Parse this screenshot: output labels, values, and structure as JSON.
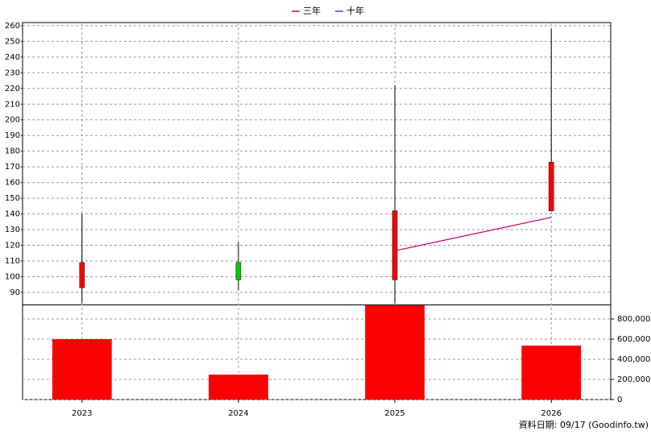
{
  "chart_data": {
    "type": "candlestick",
    "categories": [
      "2023",
      "2024",
      "2025",
      "2026"
    ],
    "open": [
      93,
      109,
      98,
      142
    ],
    "high": [
      140,
      122,
      222,
      258
    ],
    "low": [
      83,
      91.5,
      83,
      142
    ],
    "close": [
      109,
      98,
      142,
      173
    ],
    "up_color": "#ff0000",
    "down_color": "#00cc00",
    "series": [
      {
        "name": "三年",
        "color": "#cc0066",
        "values": [
          null,
          null,
          116.5,
          137.8
        ]
      },
      {
        "name": "十年",
        "color": "#6633cc",
        "values": [
          null,
          null,
          null,
          null
        ]
      }
    ],
    "ylim": [
      82,
      262
    ],
    "yticks": [
      90,
      100,
      110,
      120,
      130,
      140,
      150,
      160,
      170,
      180,
      190,
      200,
      210,
      220,
      230,
      240,
      250,
      260
    ],
    "volume": {
      "color": "#ff0000",
      "values": [
        600000,
        248000,
        936000,
        536000
      ],
      "ylim": [
        0,
        940000
      ],
      "yticks": [
        0,
        {
          "value": 200000,
          "label": "200,000"
        },
        {
          "value": 400000,
          "label": "400,000"
        },
        {
          "value": 600000,
          "label": "600,000"
        },
        {
          "value": 800000,
          "label": "800,000"
        }
      ]
    },
    "grid": true,
    "footer": "資料日期: 09/17  (Goodinfo.tw)"
  }
}
